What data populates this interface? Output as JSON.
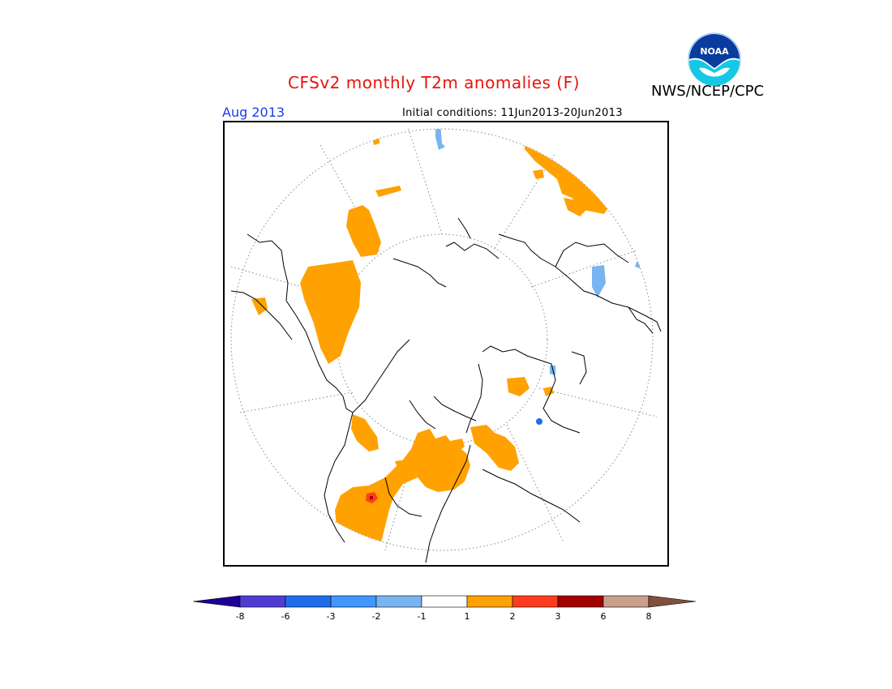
{
  "header": {
    "title": "CFSv2 monthly T2m anomalies (F)",
    "agency": "NWS/NCEP/CPC",
    "logo_text": "NOAA",
    "month": "Aug 2013",
    "initial_conditions": "Initial conditions: 11Jun2013-20Jun2013"
  },
  "map": {
    "projection": "north-polar-stereographic",
    "anomaly_colors": {
      "land_outline": "#000000",
      "warm_1_2": "#ffa100",
      "warm_2_3": "#ff3c1e",
      "warm_3_6": "#a00000",
      "cool_-1_-2": "#78b4f0",
      "cool_-2_-3": "#4196ff",
      "cool_-3_-6": "#1e6eeb"
    }
  },
  "colorbar": {
    "labels": [
      "-8",
      "-6",
      "-3",
      "-2",
      "-1",
      "1",
      "2",
      "3",
      "6",
      "8"
    ],
    "colors": [
      "#1e0096",
      "#503cd2",
      "#1e6eeb",
      "#4196ff",
      "#78b4f0",
      "#ffffff",
      "#ffa100",
      "#ff3c1e",
      "#a00000",
      "#c8a08c",
      "#82503c"
    ]
  }
}
